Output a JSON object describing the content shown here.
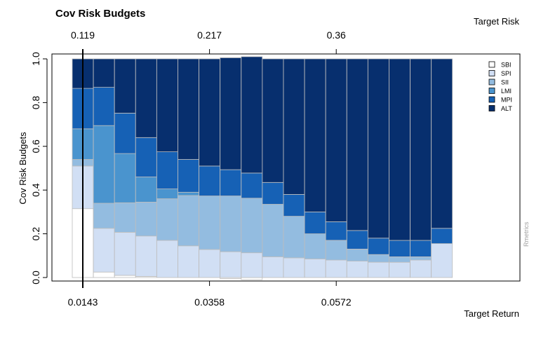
{
  "chart_data": {
    "type": "stacked-bar",
    "title": "Cov Risk Budgets",
    "ylabel": "Cov Risk Budgets",
    "top_axis_title": "Target Risk",
    "bottom_axis_title": "Target Return",
    "watermark": "Rmetrics",
    "ylim": [
      0,
      1
    ],
    "y_ticks": [
      0.0,
      0.2,
      0.4,
      0.6,
      0.8,
      1.0
    ],
    "y_tick_labels": [
      "0.0",
      "0.2",
      "0.4",
      "0.6",
      "0.8",
      "1.0"
    ],
    "bottom_ticks": [
      {
        "bar": 1,
        "label": "0.0143"
      },
      {
        "bar": 7,
        "label": "0.0358"
      },
      {
        "bar": 13,
        "label": "0.0572"
      }
    ],
    "top_ticks": [
      {
        "bar": 1,
        "label": "0.119"
      },
      {
        "bar": 7,
        "label": "0.217"
      },
      {
        "bar": 13,
        "label": "0.36"
      }
    ],
    "marker_bar": 1,
    "legend": [
      {
        "label": "SBI",
        "color": "#ffffff"
      },
      {
        "label": "SPI",
        "color": "#d1dff4"
      },
      {
        "label": "SII",
        "color": "#93bce0"
      },
      {
        "label": "LMI",
        "color": "#4a94ce"
      },
      {
        "label": "MPI",
        "color": "#1661b5"
      },
      {
        "label": "ALT",
        "color": "#072f6e"
      }
    ],
    "series": [
      {
        "name": "SBI",
        "values": [
          0.315,
          0.025,
          0.01,
          0.005,
          0.0,
          0.0,
          0.0,
          -0.005,
          -0.01,
          0.0,
          0.0,
          0.0,
          0.0,
          0.0,
          0.0,
          0.0,
          0.0,
          0.0
        ]
      },
      {
        "name": "SPI",
        "values": [
          0.195,
          0.2,
          0.197,
          0.185,
          0.17,
          0.145,
          0.128,
          0.118,
          0.113,
          0.095,
          0.09,
          0.085,
          0.08,
          0.075,
          0.07,
          0.07,
          0.08,
          0.155
        ]
      },
      {
        "name": "SII",
        "values": [
          0.03,
          0.115,
          0.135,
          0.155,
          0.19,
          0.23,
          0.245,
          0.255,
          0.25,
          0.24,
          0.19,
          0.115,
          0.09,
          0.055,
          0.035,
          0.025,
          0.015,
          0.0
        ]
      },
      {
        "name": "LMI",
        "values": [
          0.14,
          0.355,
          0.225,
          0.115,
          0.045,
          0.015,
          0.0,
          0.0,
          0.0,
          0.0,
          0.0,
          0.0,
          0.0,
          0.0,
          0.0,
          0.0,
          0.0,
          0.0
        ]
      },
      {
        "name": "MPI",
        "values": [
          0.185,
          0.175,
          0.185,
          0.18,
          0.17,
          0.15,
          0.137,
          0.12,
          0.115,
          0.1,
          0.1,
          0.1,
          0.085,
          0.085,
          0.075,
          0.075,
          0.075,
          0.07
        ]
      },
      {
        "name": "ALT",
        "values": [
          0.135,
          0.13,
          0.248,
          0.36,
          0.425,
          0.46,
          0.49,
          0.512,
          0.532,
          0.565,
          0.62,
          0.7,
          0.745,
          0.785,
          0.82,
          0.83,
          0.83,
          0.775
        ]
      }
    ]
  }
}
